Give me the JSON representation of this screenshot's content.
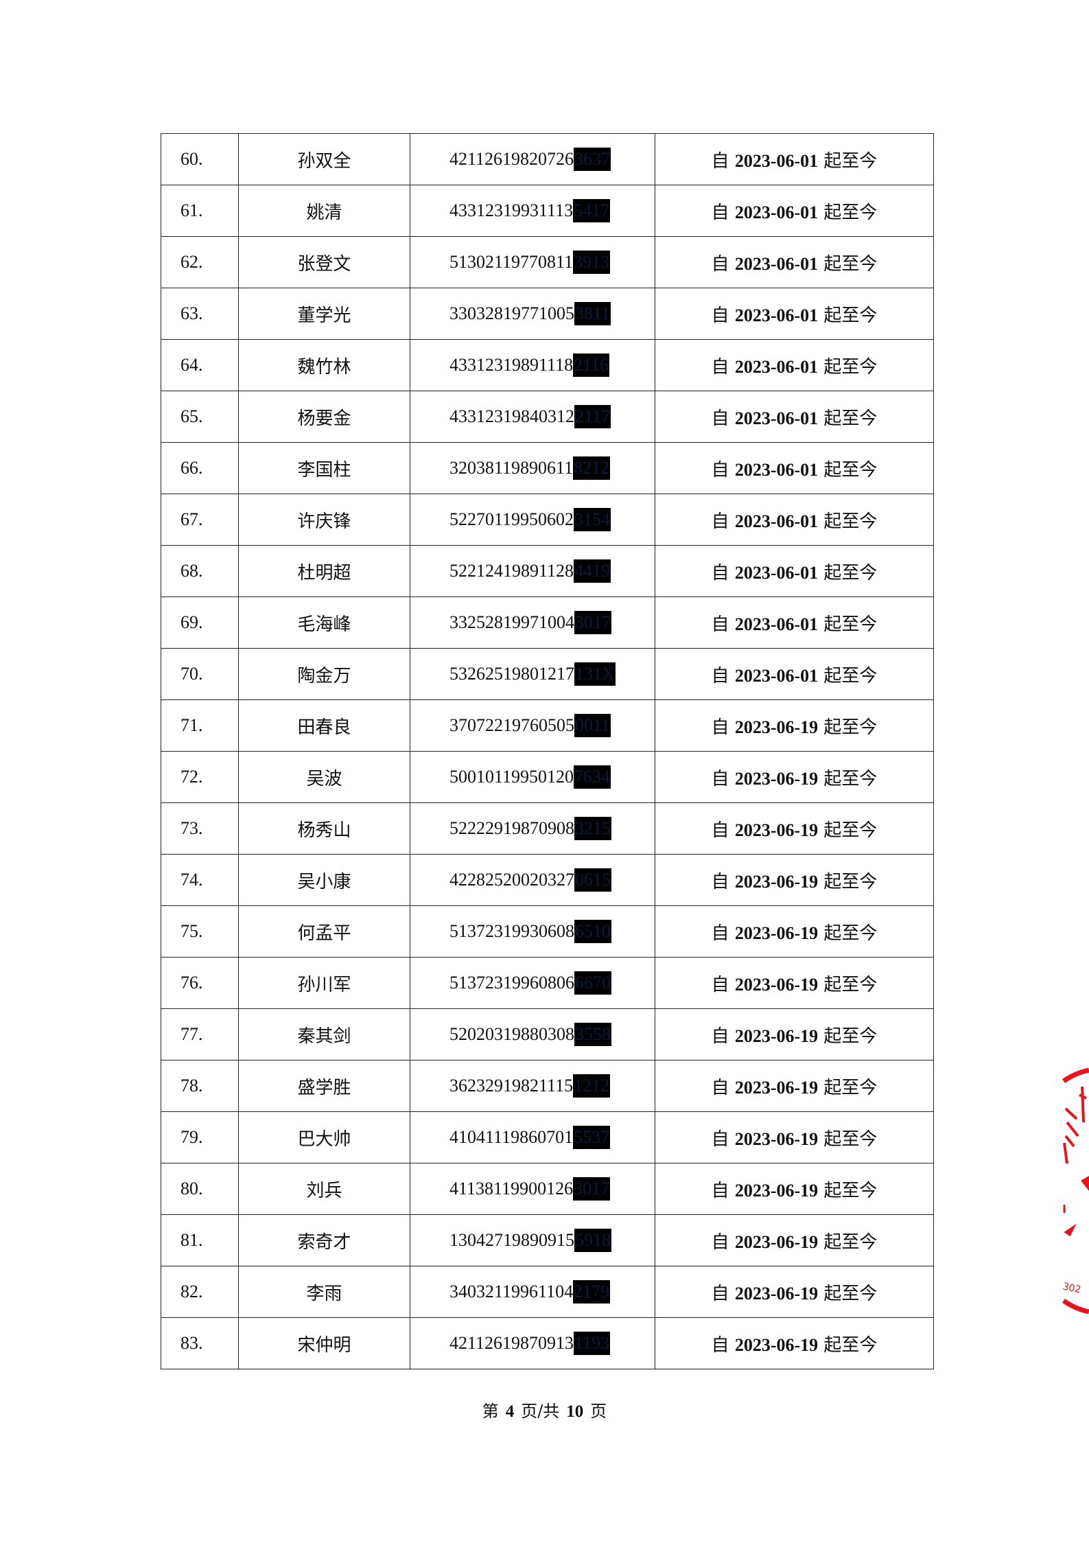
{
  "rows": [
    {
      "no": "60.",
      "name": "孙双全",
      "id_visible": "42112619820726",
      "id_masked": "3637",
      "date_prefix": "自",
      "date": "2023-06-01",
      "date_suffix": "起至今"
    },
    {
      "no": "61.",
      "name": "姚清",
      "id_visible": "43312319931113",
      "id_masked": "5417",
      "date_prefix": "自",
      "date": "2023-06-01",
      "date_suffix": "起至今"
    },
    {
      "no": "62.",
      "name": "张登文",
      "id_visible": "51302119770811",
      "id_masked": "3913",
      "date_prefix": "自",
      "date": "2023-06-01",
      "date_suffix": "起至今"
    },
    {
      "no": "63.",
      "name": "董学光",
      "id_visible": "33032819771005",
      "id_masked": "3811",
      "date_prefix": "自",
      "date": "2023-06-01",
      "date_suffix": "起至今"
    },
    {
      "no": "64.",
      "name": "魏竹林",
      "id_visible": "43312319891118",
      "id_masked": "2116",
      "date_prefix": "自",
      "date": "2023-06-01",
      "date_suffix": "起至今"
    },
    {
      "no": "65.",
      "name": "杨要金",
      "id_visible": "43312319840312",
      "id_masked": "2117",
      "date_prefix": "自",
      "date": "2023-06-01",
      "date_suffix": "起至今"
    },
    {
      "no": "66.",
      "name": "李国柱",
      "id_visible": "32038119890611",
      "id_masked": "8212",
      "date_prefix": "自",
      "date": "2023-06-01",
      "date_suffix": "起至今"
    },
    {
      "no": "67.",
      "name": "许庆锋",
      "id_visible": "52270119950602",
      "id_masked": "3154",
      "date_prefix": "自",
      "date": "2023-06-01",
      "date_suffix": "起至今"
    },
    {
      "no": "68.",
      "name": "杜明超",
      "id_visible": "52212419891128",
      "id_masked": "4419",
      "date_prefix": "自",
      "date": "2023-06-01",
      "date_suffix": "起至今"
    },
    {
      "no": "69.",
      "name": "毛海峰",
      "id_visible": "33252819971004",
      "id_masked": "3017",
      "date_prefix": "自",
      "date": "2023-06-01",
      "date_suffix": "起至今"
    },
    {
      "no": "70.",
      "name": "陶金万",
      "id_visible": "53262519801217",
      "id_masked": "131X",
      "date_prefix": "自",
      "date": "2023-06-01",
      "date_suffix": "起至今"
    },
    {
      "no": "71.",
      "name": "田春良",
      "id_visible": "37072219760505",
      "id_masked": "0011",
      "date_prefix": "自",
      "date": "2023-06-19",
      "date_suffix": "起至今"
    },
    {
      "no": "72.",
      "name": "吴波",
      "id_visible": "50010119950120",
      "id_masked": "7634",
      "date_prefix": "自",
      "date": "2023-06-19",
      "date_suffix": "起至今"
    },
    {
      "no": "73.",
      "name": "杨秀山",
      "id_visible": "52222919870908",
      "id_masked": "3215",
      "date_prefix": "自",
      "date": "2023-06-19",
      "date_suffix": "起至今"
    },
    {
      "no": "74.",
      "name": "吴小康",
      "id_visible": "42282520020327",
      "id_masked": "0615",
      "date_prefix": "自",
      "date": "2023-06-19",
      "date_suffix": "起至今"
    },
    {
      "no": "75.",
      "name": "何孟平",
      "id_visible": "51372319930608",
      "id_masked": "6510",
      "date_prefix": "自",
      "date": "2023-06-19",
      "date_suffix": "起至今"
    },
    {
      "no": "76.",
      "name": "孙川军",
      "id_visible": "51372319960806",
      "id_masked": "6670",
      "date_prefix": "自",
      "date": "2023-06-19",
      "date_suffix": "起至今"
    },
    {
      "no": "77.",
      "name": "秦其剑",
      "id_visible": "52020319880308",
      "id_masked": "3558",
      "date_prefix": "自",
      "date": "2023-06-19",
      "date_suffix": "起至今"
    },
    {
      "no": "78.",
      "name": "盛学胜",
      "id_visible": "36232919821115",
      "id_masked": "1212",
      "date_prefix": "自",
      "date": "2023-06-19",
      "date_suffix": "起至今",
      "top": true
    },
    {
      "no": "79.",
      "name": "巴大帅",
      "id_visible": "41041119860701",
      "id_masked": "5537",
      "date_prefix": "自",
      "date": "2023-06-19",
      "date_suffix": "起至今"
    },
    {
      "no": "80.",
      "name": "刘兵",
      "id_visible": "41138119900126",
      "id_masked": "3017",
      "date_prefix": "自",
      "date": "2023-06-19",
      "date_suffix": "起至今"
    },
    {
      "no": "81.",
      "name": "索奇才",
      "id_visible": "13042719890915",
      "id_masked": "5918",
      "date_prefix": "自",
      "date": "2023-06-19",
      "date_suffix": "起至今"
    },
    {
      "no": "82.",
      "name": "李雨",
      "id_visible": "34032119961104",
      "id_masked": "2179",
      "date_prefix": "自",
      "date": "2023-06-19",
      "date_suffix": "起至今"
    },
    {
      "no": "83.",
      "name": "宋仲明",
      "id_visible": "42112619870913",
      "id_masked": "1193",
      "date_prefix": "自",
      "date": "2023-06-19",
      "date_suffix": "起至今"
    }
  ],
  "footer": {
    "page_prefix": "第",
    "page": "4",
    "page_mid": "页/共",
    "total": "10",
    "page_suffix": "页"
  },
  "stamp": {
    "text_fragment": "302",
    "color": "#e8141c"
  }
}
